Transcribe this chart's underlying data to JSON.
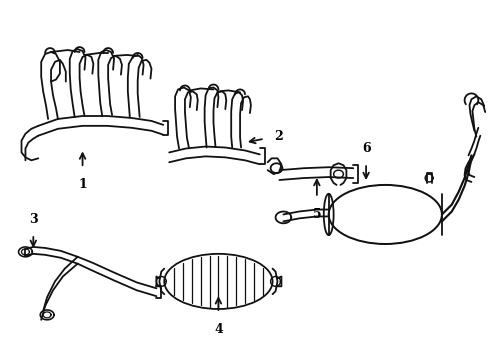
{
  "background": "#ffffff",
  "line_color": "#111111",
  "line_width": 1.3,
  "label_color": "#000000",
  "figsize": [
    4.9,
    3.6
  ],
  "dpi": 100
}
